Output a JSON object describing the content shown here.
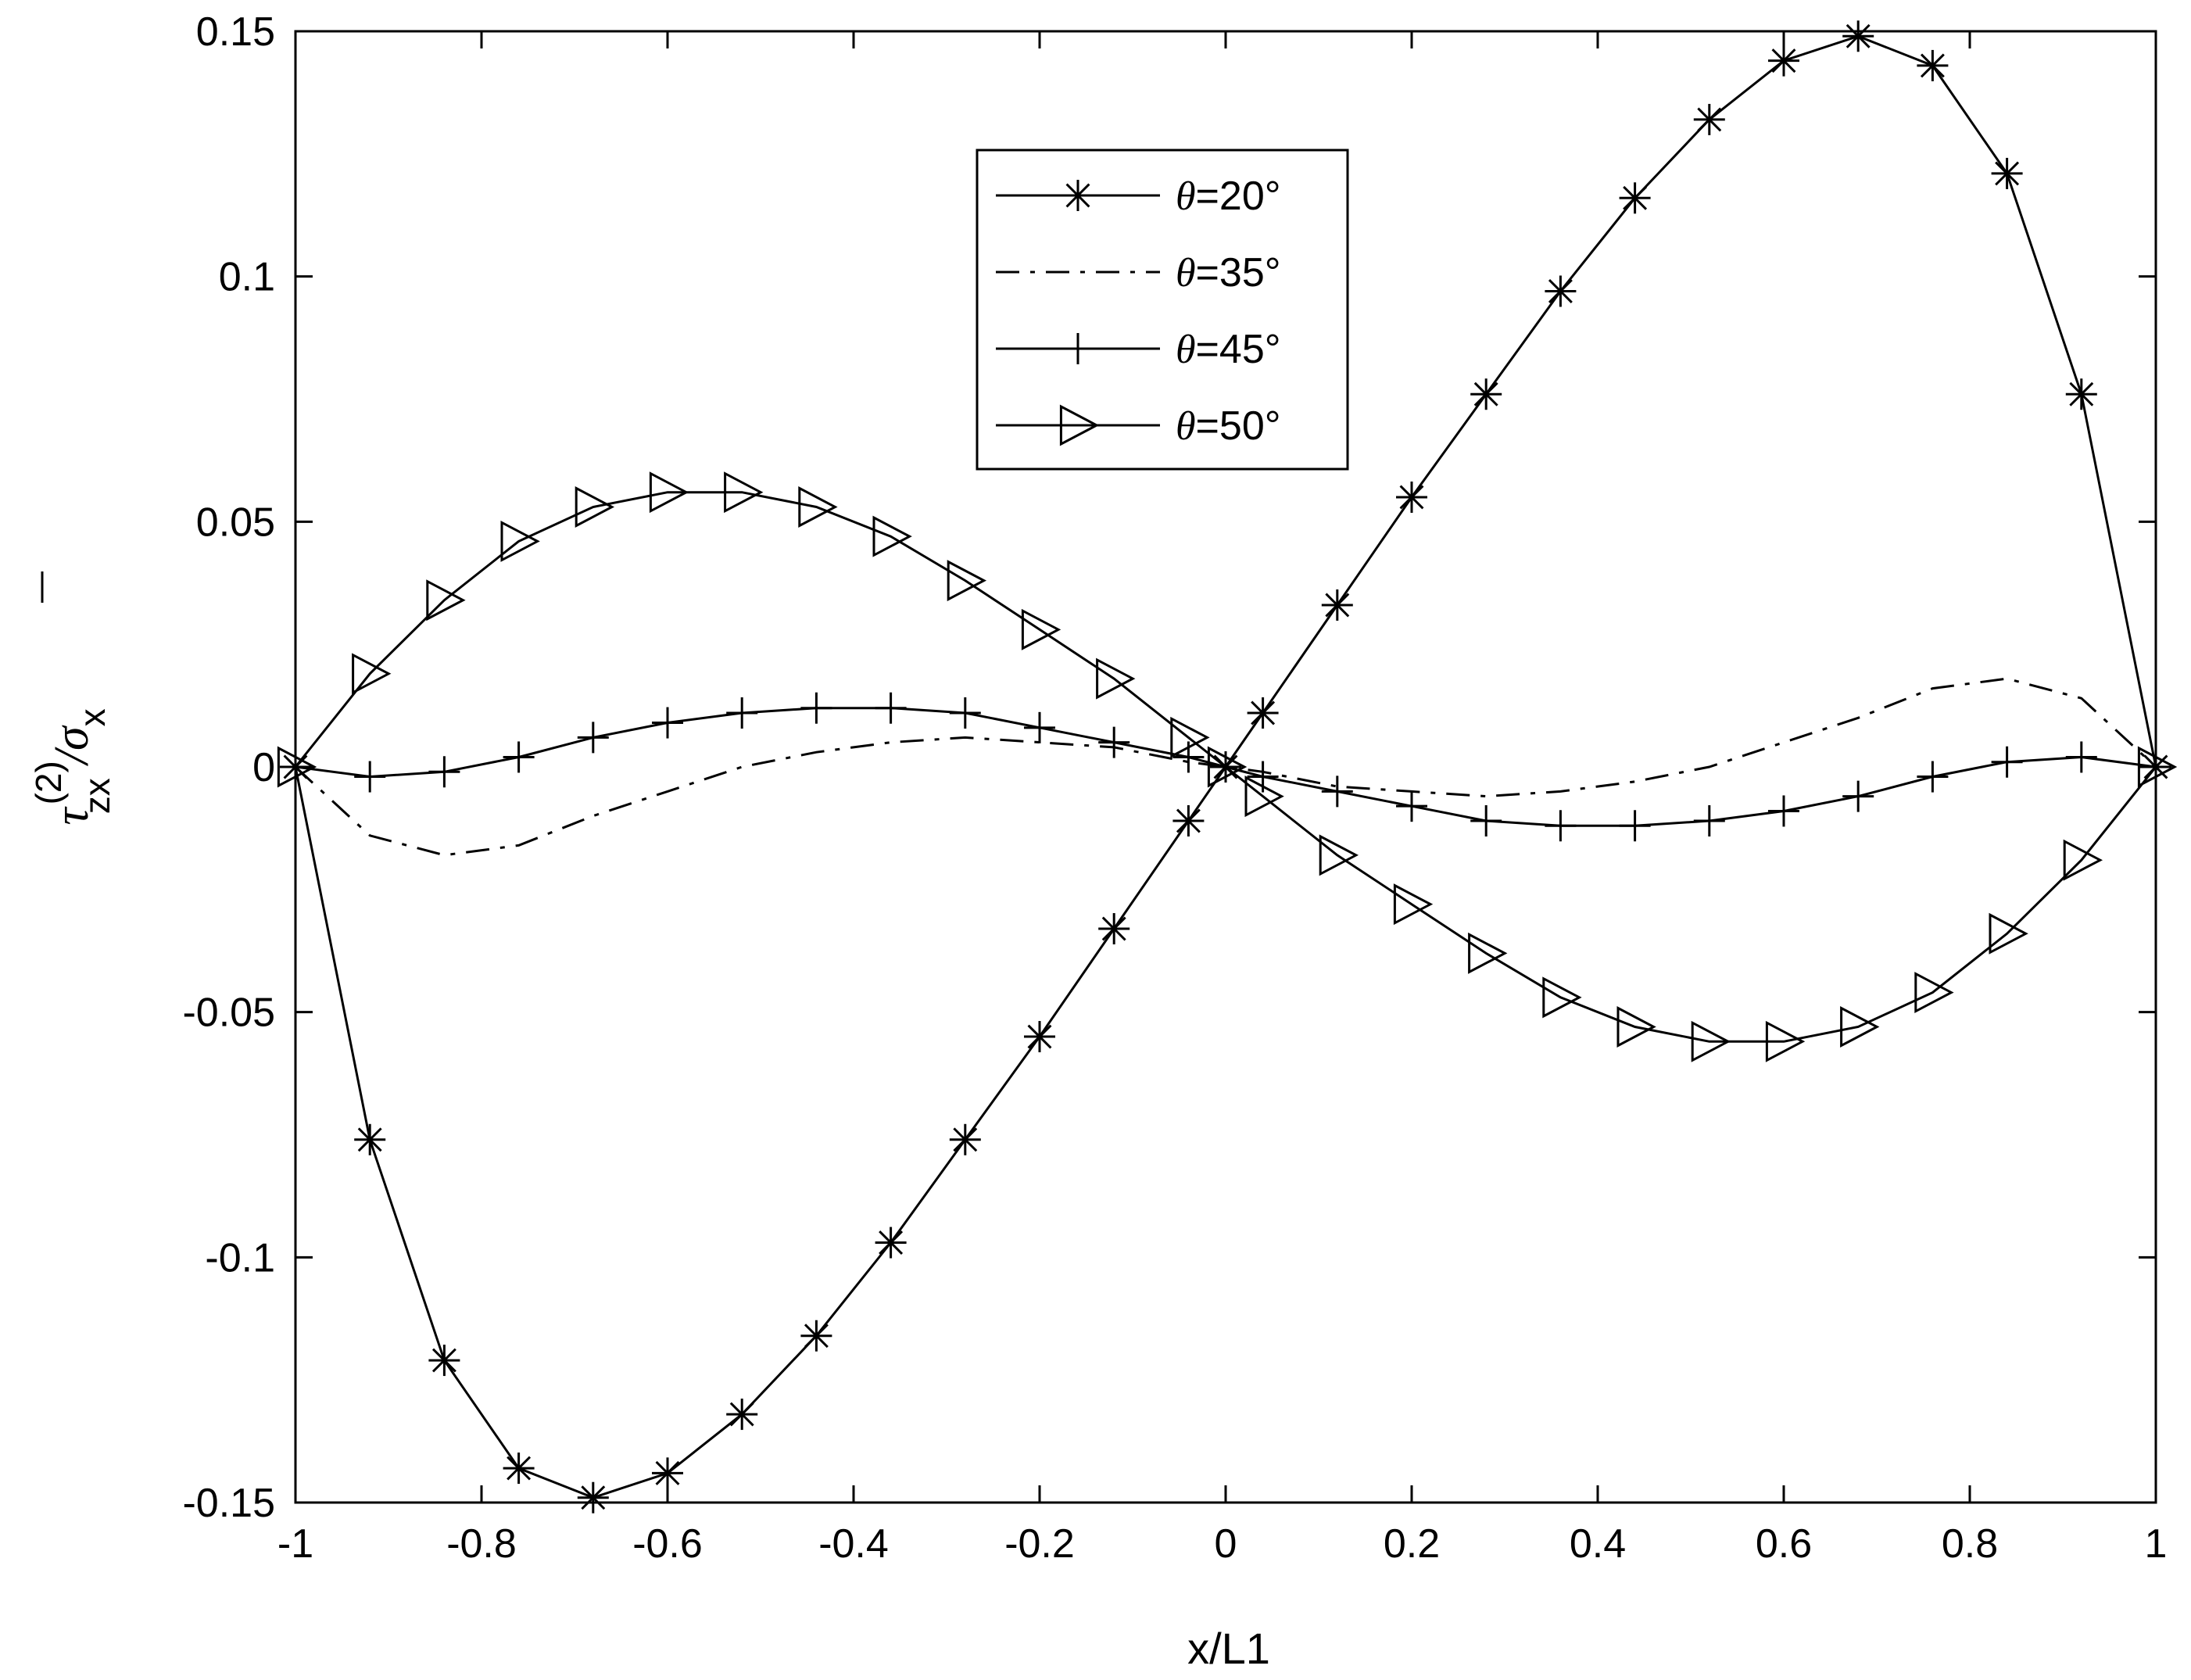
{
  "chart_data": {
    "type": "line",
    "title": "",
    "xlabel": "x/L1",
    "ylabel": {
      "symbol": "τ",
      "superscript": "(2)",
      "subscript": "zx",
      "divider": "/σ",
      "divider_subscript": "x"
    },
    "xlim": [
      -1,
      1
    ],
    "ylim": [
      -0.15,
      0.15
    ],
    "x_ticks": [
      -1,
      -0.8,
      -0.6,
      -0.4,
      -0.2,
      0,
      0.2,
      0.4,
      0.6,
      0.8,
      1
    ],
    "x_tick_labels": [
      "-1",
      "-0.8",
      "-0.6",
      "-0.4",
      "-0.2",
      "0",
      "0.2",
      "0.4",
      "0.6",
      "0.8",
      "1"
    ],
    "y_ticks": [
      -0.15,
      -0.1,
      -0.05,
      0,
      0.05,
      0.1,
      0.15
    ],
    "y_tick_labels": [
      "-0.15",
      "-0.1",
      "-0.05",
      "0",
      "0.05",
      "0.1",
      "0.15"
    ],
    "grid": false,
    "legend_position": "top-center",
    "x": [
      -1,
      -0.92,
      -0.84,
      -0.76,
      -0.68,
      -0.6,
      -0.52,
      -0.44,
      -0.36,
      -0.28,
      -0.2,
      -0.12,
      -0.04,
      0,
      0.04,
      0.12,
      0.2,
      0.28,
      0.36,
      0.44,
      0.52,
      0.6,
      0.68,
      0.76,
      0.84,
      0.92,
      1
    ],
    "series": [
      {
        "name": "θ=20°",
        "line": "solid",
        "marker": "asterisk",
        "values": [
          0,
          -0.076,
          -0.121,
          -0.143,
          -0.149,
          -0.144,
          -0.132,
          -0.116,
          -0.097,
          -0.076,
          -0.055,
          -0.033,
          -0.011,
          0,
          0.011,
          0.033,
          0.055,
          0.076,
          0.097,
          0.116,
          0.132,
          0.144,
          0.149,
          0.143,
          0.121,
          0.076,
          0
        ]
      },
      {
        "name": "θ=35°",
        "line": "dashdot",
        "marker": "none",
        "values": [
          0,
          -0.014,
          -0.018,
          -0.016,
          -0.01,
          -0.005,
          0,
          0.003,
          0.005,
          0.006,
          0.005,
          0.004,
          0.001,
          0,
          -0.001,
          -0.004,
          -0.005,
          -0.006,
          -0.005,
          -0.003,
          0,
          0.005,
          0.01,
          0.016,
          0.018,
          0.014,
          0
        ]
      },
      {
        "name": "θ=45°",
        "line": "solid",
        "marker": "plus",
        "values": [
          0,
          -0.002,
          -0.001,
          0.002,
          0.006,
          0.009,
          0.011,
          0.012,
          0.012,
          0.011,
          0.008,
          0.005,
          0.002,
          0,
          -0.002,
          -0.005,
          -0.008,
          -0.011,
          -0.012,
          -0.012,
          -0.011,
          -0.009,
          -0.006,
          -0.002,
          0.001,
          0.002,
          0
        ]
      },
      {
        "name": "θ=50°",
        "line": "solid",
        "marker": "triangle-right",
        "values": [
          0,
          0.019,
          0.034,
          0.046,
          0.053,
          0.056,
          0.056,
          0.053,
          0.047,
          0.038,
          0.028,
          0.018,
          0.006,
          0,
          -0.006,
          -0.018,
          -0.028,
          -0.038,
          -0.047,
          -0.053,
          -0.056,
          -0.056,
          -0.053,
          -0.046,
          -0.034,
          -0.019,
          0
        ]
      }
    ]
  }
}
